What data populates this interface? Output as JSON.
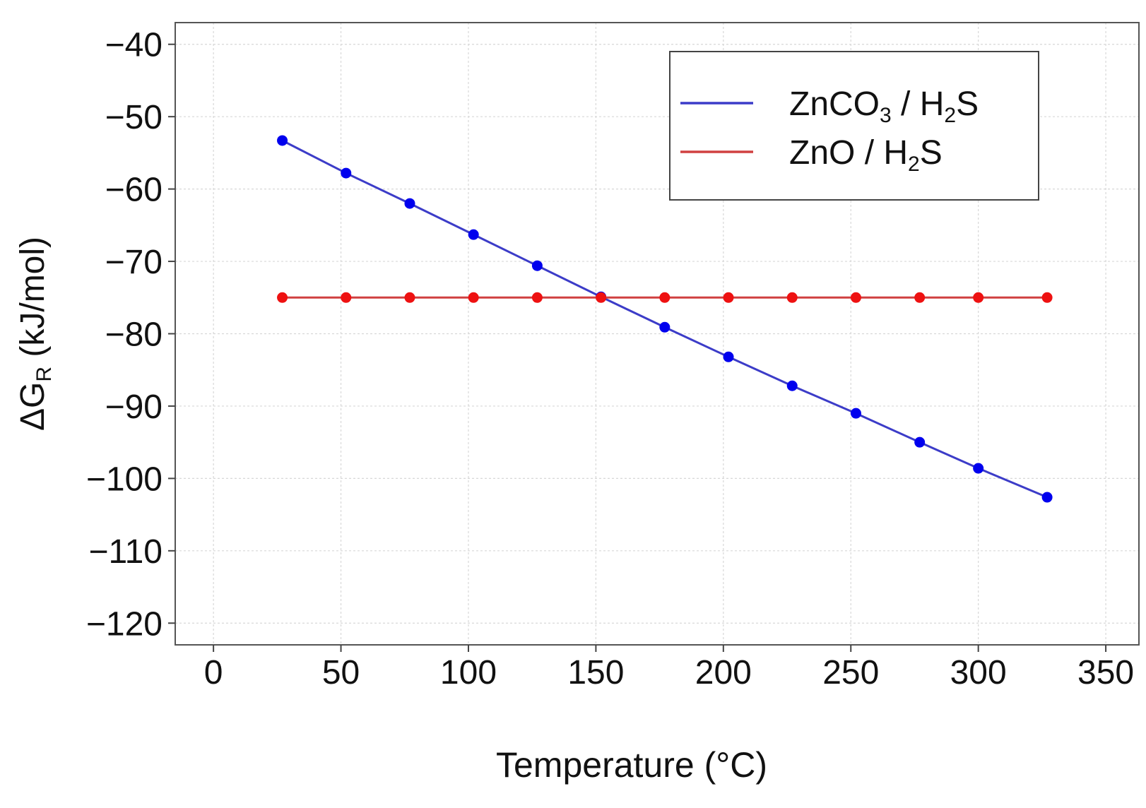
{
  "chart_data": {
    "type": "line",
    "title": "",
    "xlabel": "Temperature (°C)",
    "ylabel": {
      "prefix": "ΔG",
      "subscript": "R",
      "suffix": " (kJ/mol)"
    },
    "xlim": [
      -15,
      363
    ],
    "ylim": [
      -123,
      -37
    ],
    "xticks": [
      0,
      50,
      100,
      150,
      200,
      250,
      300,
      350
    ],
    "yticks": [
      -40,
      -50,
      -60,
      -70,
      -80,
      -90,
      -100,
      -110,
      -120
    ],
    "xtick_labels": [
      "0",
      "50",
      "100",
      "150",
      "200",
      "250",
      "300",
      "350"
    ],
    "ytick_labels": [
      "−40",
      "−50",
      "−60",
      "−70",
      "−80",
      "−90",
      "−100",
      "−110",
      "−120"
    ],
    "grid": true,
    "legend_position": "top-right",
    "x": [
      27,
      52,
      77,
      102,
      127,
      152,
      177,
      202,
      227,
      252,
      277,
      300,
      327
    ],
    "series": [
      {
        "name": "ZnCO3 / H2S",
        "legend_parts": [
          {
            "text": "ZnCO",
            "sub": false
          },
          {
            "text": "3",
            "sub": true
          },
          {
            "text": " / H",
            "sub": false
          },
          {
            "text": "2",
            "sub": true
          },
          {
            "text": "S",
            "sub": false
          }
        ],
        "line_color": "#3c3cc8",
        "marker_color": "#0000ee",
        "values": [
          -53.3,
          -57.8,
          -62.0,
          -66.3,
          -70.6,
          -74.9,
          -79.1,
          -83.2,
          -87.2,
          -91.0,
          -95.0,
          -98.6,
          -102.6
        ]
      },
      {
        "name": "ZnO / H2S",
        "legend_parts": [
          {
            "text": "ZnO / H",
            "sub": false
          },
          {
            "text": "2",
            "sub": true
          },
          {
            "text": "S",
            "sub": false
          }
        ],
        "line_color": "#d04040",
        "marker_color": "#ee1111",
        "values": [
          -75.0,
          -75.0,
          -75.0,
          -75.0,
          -75.0,
          -75.0,
          -75.0,
          -75.0,
          -75.0,
          -75.0,
          -75.0,
          -75.0,
          -75.0
        ]
      }
    ]
  }
}
